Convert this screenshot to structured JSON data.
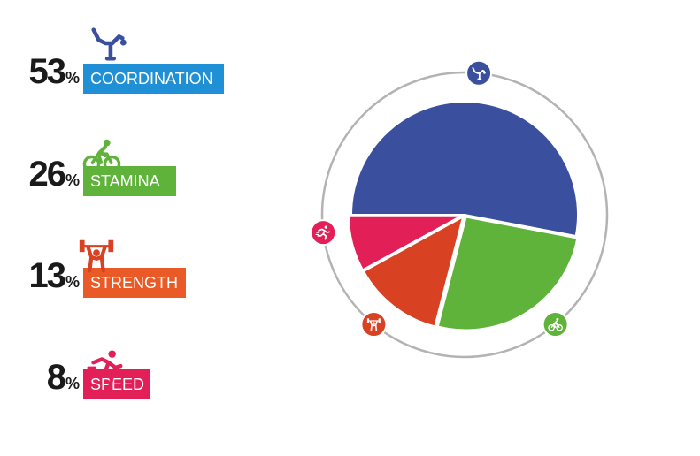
{
  "chart_data": {
    "type": "pie",
    "percent_sign": "%",
    "series": [
      {
        "name": "COORDINATION",
        "value": 53,
        "color": "#3a4f9e",
        "icon": "gymnast-icon",
        "label_bg": "#1f8fd6"
      },
      {
        "name": "STAMINA",
        "value": 26,
        "color": "#5fb23a",
        "icon": "cyclist-icon",
        "label_bg": "#5fb23a"
      },
      {
        "name": "STRENGTH",
        "value": 13,
        "color": "#d94123",
        "icon": "weightlifter-icon",
        "label_bg": "#ea5a26"
      },
      {
        "name": "SPEED",
        "value": 8,
        "color": "#e31f58",
        "icon": "runner-icon",
        "label_bg": "#e31f58"
      }
    ],
    "legend_placement": "left",
    "ring_color": "#b3b3b3"
  }
}
